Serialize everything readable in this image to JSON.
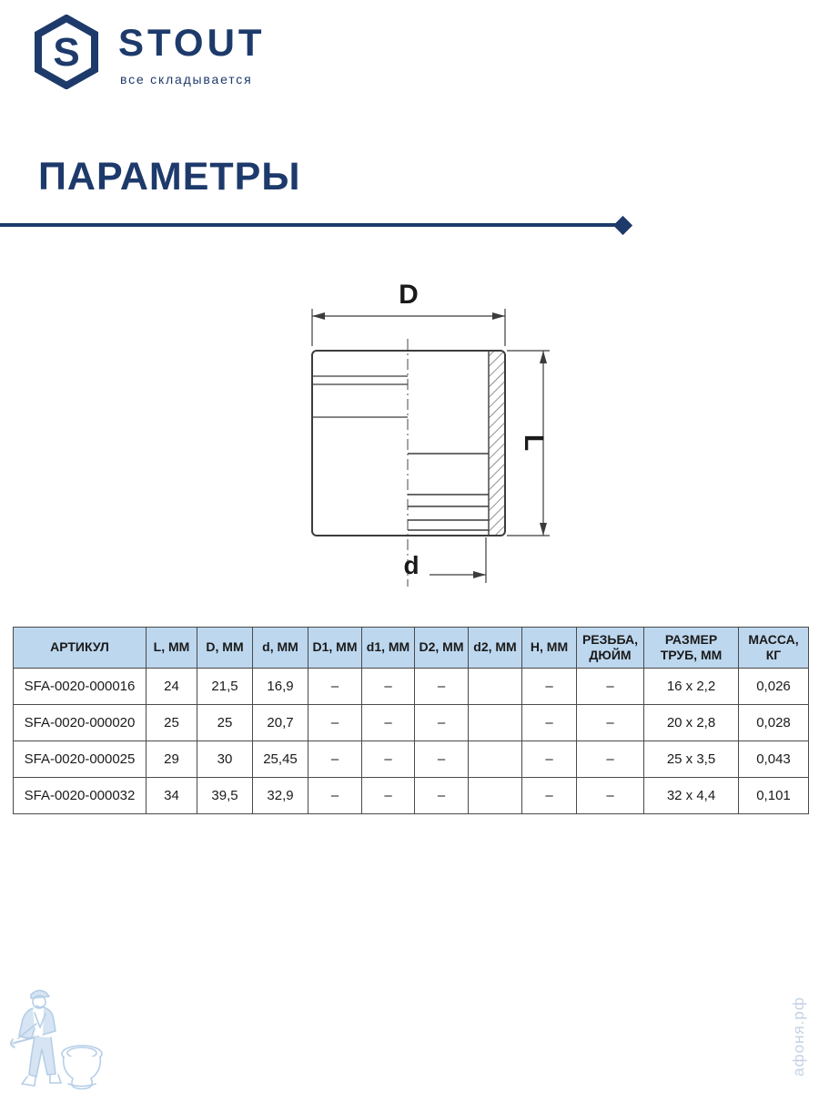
{
  "brand": {
    "name": "STOUT",
    "tagline": "все складывается",
    "logo_letter": "S"
  },
  "page_title": "ПАРАМЕТРЫ",
  "diagram": {
    "labels": {
      "top": "D",
      "right": "L",
      "bottom": "d"
    }
  },
  "table": {
    "headers": [
      "АРТИКУЛ",
      "L, MM",
      "D, MM",
      "d, MM",
      "D1, MM",
      "d1, MM",
      "D2, MM",
      "d2, MM",
      "H, MM",
      "РЕЗЬБА, ДЮЙМ",
      "РАЗМЕР ТРУБ, ММ",
      "МАССА, КГ"
    ],
    "rows": [
      [
        "SFA-0020-000016",
        "24",
        "21,5",
        "16,9",
        "–",
        "–",
        "–",
        "",
        "–",
        "–",
        "16 x 2,2",
        "0,026"
      ],
      [
        "SFA-0020-000020",
        "25",
        "25",
        "20,7",
        "–",
        "–",
        "–",
        "",
        "–",
        "–",
        "20 x 2,8",
        "0,028"
      ],
      [
        "SFA-0020-000025",
        "29",
        "30",
        "25,45",
        "–",
        "–",
        "–",
        "",
        "–",
        "–",
        "25 x 3,5",
        "0,043"
      ],
      [
        "SFA-0020-000032",
        "34",
        "39,5",
        "32,9",
        "–",
        "–",
        "–",
        "",
        "–",
        "–",
        "32 x 4,4",
        "0,101"
      ]
    ]
  },
  "watermark": {
    "site": "афоня.рф"
  },
  "colors": {
    "brand_navy": "#1d3a6b",
    "table_header_bg": "#bdd7ee",
    "table_border": "#4a4a4a",
    "drawing_stroke": "#3c3c3c",
    "watermark_blue": "#a9c6e3",
    "watermark_text": "#c3d2e3"
  }
}
